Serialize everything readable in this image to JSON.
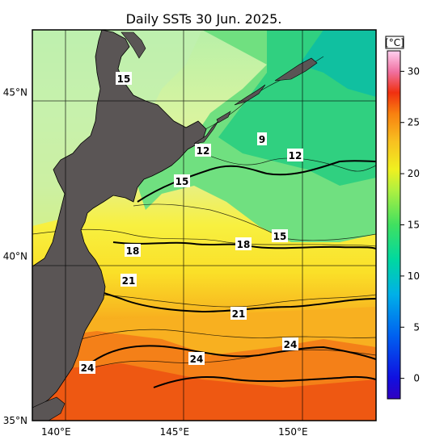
{
  "title": "Daily SSTs 30 Jun. 2025.",
  "colorbar": {
    "unit": "[°C]",
    "ticks": [
      "30",
      "25",
      "20",
      "15",
      "10",
      "5",
      "0"
    ],
    "tick_values": [
      30,
      25,
      20,
      15,
      10,
      5,
      0
    ],
    "range": [
      -2,
      32
    ]
  },
  "axes": {
    "lat_labels": [
      {
        "text": "45°N",
        "value": 45
      },
      {
        "text": "40°N",
        "value": 40
      },
      {
        "text": "35°N",
        "value": 35
      }
    ],
    "lon_labels": [
      {
        "text": "140°E",
        "value": 140
      },
      {
        "text": "145°E",
        "value": 145
      },
      {
        "text": "150°E",
        "value": 150
      }
    ],
    "lon_range": [
      139,
      153.5
    ],
    "lat_range": [
      35,
      46.9
    ]
  },
  "contour_labels": [
    {
      "text": "15"
    },
    {
      "text": "12"
    },
    {
      "text": "9"
    },
    {
      "text": "12"
    },
    {
      "text": "15"
    },
    {
      "text": "15"
    },
    {
      "text": "18"
    },
    {
      "text": "18"
    },
    {
      "text": "21"
    },
    {
      "text": "21"
    },
    {
      "text": "24"
    },
    {
      "text": "24"
    },
    {
      "text": "24"
    }
  ],
  "colors": {
    "land": "#5a5555",
    "cold": "#10c890",
    "mid": "#f0f020",
    "warm": "#f05010"
  }
}
